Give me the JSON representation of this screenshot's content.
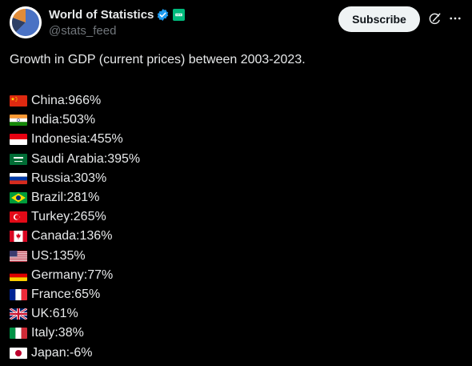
{
  "header": {
    "display_name": "World of Statistics",
    "handle": "@stats_feed",
    "subscribe_label": "Subscribe",
    "verified_color": "#1d9bf0",
    "affiliate_color": "#00ba7c"
  },
  "post": {
    "text": "Growth in GDP (current prices) between 2003-2023.",
    "items": [
      {
        "country": "China",
        "value": "966%",
        "flag": "cn"
      },
      {
        "country": "India",
        "value": "503%",
        "flag": "in"
      },
      {
        "country": "Indonesia",
        "value": "455%",
        "flag": "id"
      },
      {
        "country": "Saudi Arabia",
        "value": "395%",
        "flag": "sa"
      },
      {
        "country": "Russia",
        "value": "303%",
        "flag": "ru"
      },
      {
        "country": "Brazil",
        "value": "281%",
        "flag": "br"
      },
      {
        "country": "Turkey",
        "value": "265%",
        "flag": "tr"
      },
      {
        "country": "Canada",
        "value": "136%",
        "flag": "ca"
      },
      {
        "country": "US",
        "value": "135%",
        "flag": "us"
      },
      {
        "country": "Germany",
        "value": "77%",
        "flag": "de"
      },
      {
        "country": "France",
        "value": "65%",
        "flag": "fr"
      },
      {
        "country": "UK",
        "value": "61%",
        "flag": "gb"
      },
      {
        "country": "Italy",
        "value": "38%",
        "flag": "it"
      },
      {
        "country": "Japan",
        "value": "-6%",
        "flag": "jp"
      }
    ]
  },
  "icons": {
    "avatar": "pie-chart-avatar",
    "verified": "verified-badge-icon",
    "affiliate": "affiliate-badge-icon",
    "grok": "grok-icon",
    "more": "more-icon"
  }
}
